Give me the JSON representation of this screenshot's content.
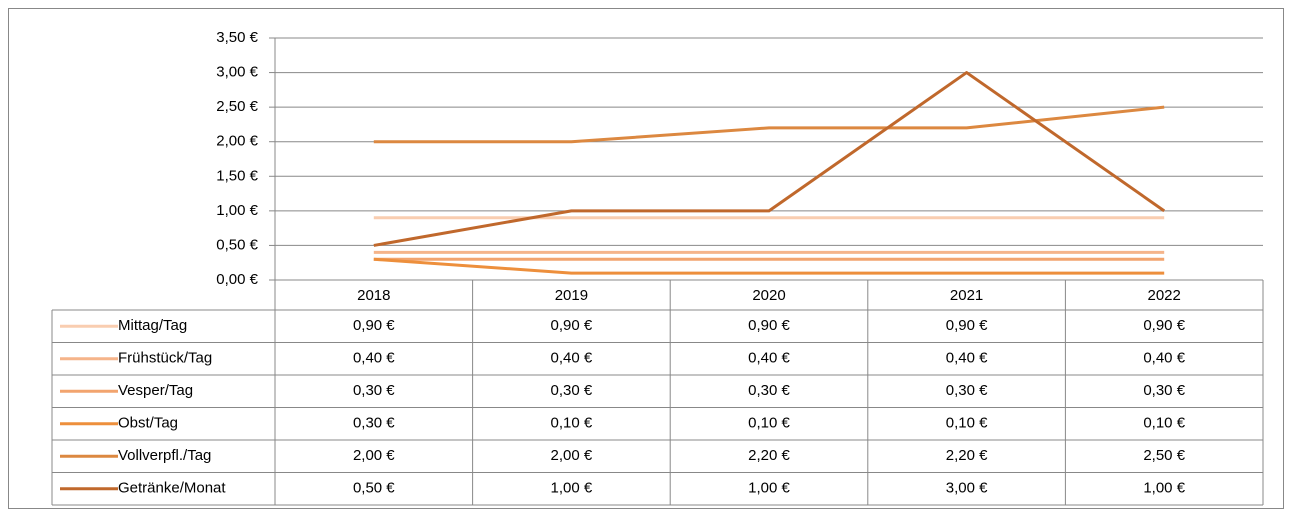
{
  "chart_data": {
    "type": "line",
    "categories": [
      "2018",
      "2019",
      "2020",
      "2021",
      "2022"
    ],
    "ylim": [
      0,
      3.5
    ],
    "yticks": [
      {
        "value": 0,
        "label": "0,00 €"
      },
      {
        "value": 0.5,
        "label": "0,50 €"
      },
      {
        "value": 1,
        "label": "1,00 €"
      },
      {
        "value": 1.5,
        "label": "1,50 €"
      },
      {
        "value": 2,
        "label": "2,00 €"
      },
      {
        "value": 2.5,
        "label": "2,50 €"
      },
      {
        "value": 3,
        "label": "3,00 €"
      },
      {
        "value": 3.5,
        "label": "3,50 €"
      }
    ],
    "grid": true,
    "series": [
      {
        "name": "Mittag/Tag",
        "color": "#f9cdb0",
        "values": [
          0.9,
          0.9,
          0.9,
          0.9,
          0.9
        ],
        "value_labels": [
          "0,90 €",
          "0,90 €",
          "0,90 €",
          "0,90 €",
          "0,90 €"
        ]
      },
      {
        "name": "Frühstück/Tag",
        "color": "#f5b48a",
        "values": [
          0.4,
          0.4,
          0.4,
          0.4,
          0.4
        ],
        "value_labels": [
          "0,40 €",
          "0,40 €",
          "0,40 €",
          "0,40 €",
          "0,40 €"
        ]
      },
      {
        "name": "Vesper/Tag",
        "color": "#f2a46e",
        "values": [
          0.3,
          0.3,
          0.3,
          0.3,
          0.3
        ],
        "value_labels": [
          "0,30 €",
          "0,30 €",
          "0,30 €",
          "0,30 €",
          "0,30 €"
        ]
      },
      {
        "name": "Obst/Tag",
        "color": "#ed8f3c",
        "values": [
          0.3,
          0.1,
          0.1,
          0.1,
          0.1
        ],
        "value_labels": [
          "0,30 €",
          "0,10 €",
          "0,10 €",
          "0,10 €",
          "0,10 €"
        ]
      },
      {
        "name": "Vollverpfl./Tag",
        "color": "#dc8840",
        "values": [
          2,
          2,
          2.2,
          2.2,
          2.5
        ],
        "value_labels": [
          "2,00 €",
          "2,00 €",
          "2,20 €",
          "2,20 €",
          "2,50 €"
        ]
      },
      {
        "name": "Getränke/Monat",
        "color": "#c0682c",
        "values": [
          0.5,
          1,
          1,
          3,
          1
        ],
        "value_labels": [
          "0,50 €",
          "1,00 €",
          "1,00 €",
          "3,00 €",
          "1,00 €"
        ]
      }
    ]
  }
}
